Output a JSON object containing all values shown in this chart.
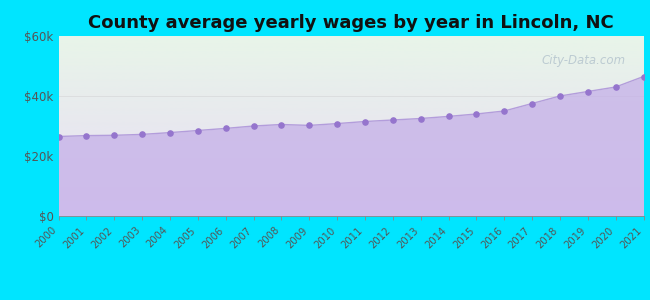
{
  "title": "County average yearly wages by year in Lincoln, NC",
  "years": [
    2000,
    2001,
    2002,
    2003,
    2004,
    2005,
    2006,
    2007,
    2008,
    2009,
    2010,
    2011,
    2012,
    2013,
    2014,
    2015,
    2016,
    2017,
    2018,
    2019,
    2020,
    2021
  ],
  "wages": [
    26500,
    26800,
    26900,
    27200,
    27800,
    28500,
    29200,
    30000,
    30500,
    30200,
    30800,
    31500,
    32000,
    32500,
    33200,
    34000,
    35000,
    37500,
    40000,
    41500,
    43000,
    46500
  ],
  "ylim": [
    0,
    60000
  ],
  "yticks": [
    0,
    20000,
    40000,
    60000
  ],
  "ytick_labels": [
    "$0",
    "$20k",
    "$40k",
    "$60k"
  ],
  "line_color": "#b39ddb",
  "fill_color": "#c5b0e8",
  "fill_alpha": 0.75,
  "dot_color": "#9575cd",
  "dot_size": 14,
  "background_color": "#00e5ff",
  "plot_bg_top_color": "#e8f5e9",
  "plot_bg_bottom_color": "#e8e0f0",
  "title_fontsize": 13,
  "tick_label_color": "#555555",
  "watermark": "City-Data.com",
  "watermark_color": "#aabbc8",
  "watermark_alpha": 0.7,
  "grid_color": "#cccccc",
  "grid_alpha": 0.5
}
